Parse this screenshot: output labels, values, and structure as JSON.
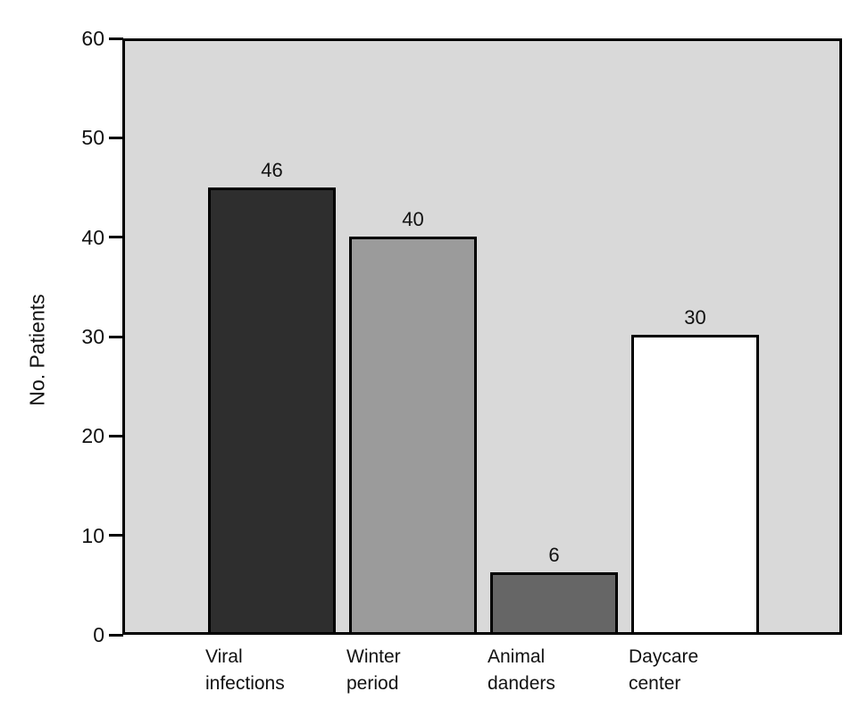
{
  "figure": {
    "background_color": "#ffffff",
    "text_color": "#111111"
  },
  "chart_data": {
    "type": "bar",
    "title": "",
    "xlabel": "",
    "ylabel": "No. Patients",
    "ylim": [
      0,
      60
    ],
    "yticks": [
      0,
      10,
      20,
      30,
      40,
      50,
      60
    ],
    "grid": false,
    "legend": false,
    "plot_background": "#d9d9d9",
    "axis_color": "#000000",
    "categories": [
      "Viral infections",
      "Winter period",
      "Animal danders",
      "Daycare center"
    ],
    "category_lines": [
      [
        "Viral",
        "infections"
      ],
      [
        "Winter",
        "period"
      ],
      [
        "Animal",
        "danders"
      ],
      [
        "Daycare",
        "center"
      ]
    ],
    "values": [
      46,
      40,
      6,
      30
    ],
    "bar_labels": [
      "46",
      "40",
      "6",
      "30"
    ],
    "drawn_values": [
      45,
      40.1,
      6.3,
      30.2
    ],
    "bar_colors": [
      "#2e2e2e",
      "#9b9b9b",
      "#666666",
      "#ffffff"
    ],
    "bar_border_color": "#000000"
  }
}
